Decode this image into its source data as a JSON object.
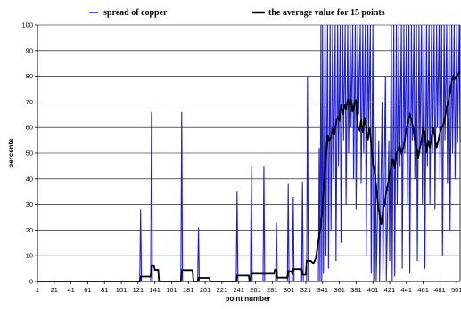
{
  "chart_data": {
    "type": "line",
    "title": "",
    "xlabel": "point number",
    "ylabel": "percents",
    "xlim": [
      1,
      505
    ],
    "ylim": [
      0,
      100
    ],
    "grid": true,
    "legend_position": "top",
    "x_tick_labels": [
      "1",
      "21",
      "41",
      "61",
      "81",
      "101",
      "121",
      "141",
      "161",
      "181",
      "201",
      "221",
      "241",
      "261",
      "281",
      "301",
      "321",
      "341",
      "361",
      "381",
      "401",
      "421",
      "441",
      "461",
      "481",
      "501"
    ],
    "y_tick_labels": [
      "0",
      "10",
      "20",
      "30",
      "40",
      "50",
      "60",
      "70",
      "80",
      "90",
      "100"
    ],
    "series": [
      {
        "name": "spread of copper",
        "color": "#1f1fd0",
        "points": [
          [
            1,
            0
          ],
          [
            123,
            0
          ],
          [
            124,
            28
          ],
          [
            125,
            0
          ],
          [
            136,
            0
          ],
          [
            137,
            66
          ],
          [
            138,
            0
          ],
          [
            172,
            0
          ],
          [
            173,
            66
          ],
          [
            174,
            0
          ],
          [
            192,
            0
          ],
          [
            193,
            21
          ],
          [
            194,
            0
          ],
          [
            238,
            0
          ],
          [
            239,
            35
          ],
          [
            240,
            0
          ],
          [
            255,
            0
          ],
          [
            256,
            45
          ],
          [
            257,
            0
          ],
          [
            270,
            0
          ],
          [
            271,
            45
          ],
          [
            272,
            0
          ],
          [
            285,
            0
          ],
          [
            286,
            23
          ],
          [
            287,
            0
          ],
          [
            299,
            0
          ],
          [
            300,
            38
          ],
          [
            301,
            0
          ],
          [
            305,
            0
          ],
          [
            306,
            33
          ],
          [
            307,
            0
          ],
          [
            316,
            0
          ],
          [
            317,
            39
          ],
          [
            318,
            0
          ],
          [
            322,
            0
          ],
          [
            323,
            80
          ],
          [
            324,
            0
          ],
          [
            336,
            0
          ],
          [
            337,
            52
          ],
          [
            338,
            0
          ],
          [
            339,
            100
          ],
          [
            340,
            0
          ],
          [
            341,
            100
          ],
          [
            342,
            3
          ],
          [
            344,
            100
          ],
          [
            345,
            10
          ],
          [
            347,
            100
          ],
          [
            348,
            5
          ],
          [
            350,
            100
          ],
          [
            351,
            20
          ],
          [
            353,
            100
          ],
          [
            354,
            40
          ],
          [
            356,
            100
          ],
          [
            357,
            8
          ],
          [
            359,
            100
          ],
          [
            360,
            45
          ],
          [
            362,
            100
          ],
          [
            363,
            15
          ],
          [
            365,
            100
          ],
          [
            366,
            55
          ],
          [
            368,
            100
          ],
          [
            369,
            30
          ],
          [
            371,
            100
          ],
          [
            372,
            50
          ],
          [
            374,
            100
          ],
          [
            375,
            60
          ],
          [
            377,
            100
          ],
          [
            378,
            40
          ],
          [
            380,
            100
          ],
          [
            381,
            28
          ],
          [
            383,
            100
          ],
          [
            384,
            65
          ],
          [
            386,
            100
          ],
          [
            387,
            38
          ],
          [
            389,
            100
          ],
          [
            390,
            50
          ],
          [
            392,
            100
          ],
          [
            393,
            10
          ],
          [
            395,
            100
          ],
          [
            396,
            58
          ],
          [
            398,
            100
          ],
          [
            399,
            3
          ],
          [
            401,
            100
          ],
          [
            402,
            0
          ],
          [
            404,
            60
          ],
          [
            405,
            0
          ],
          [
            408,
            55
          ],
          [
            409,
            0
          ],
          [
            412,
            70
          ],
          [
            413,
            2
          ],
          [
            416,
            80
          ],
          [
            417,
            0
          ],
          [
            420,
            55
          ],
          [
            421,
            8
          ],
          [
            423,
            100
          ],
          [
            424,
            0
          ],
          [
            426,
            100
          ],
          [
            427,
            2
          ],
          [
            429,
            100
          ],
          [
            430,
            30
          ],
          [
            432,
            100
          ],
          [
            433,
            45
          ],
          [
            435,
            100
          ],
          [
            436,
            5
          ],
          [
            438,
            100
          ],
          [
            439,
            50
          ],
          [
            441,
            100
          ],
          [
            442,
            30
          ],
          [
            444,
            100
          ],
          [
            445,
            3
          ],
          [
            447,
            100
          ],
          [
            448,
            55
          ],
          [
            450,
            100
          ],
          [
            451,
            40
          ],
          [
            453,
            100
          ],
          [
            454,
            8
          ],
          [
            456,
            100
          ],
          [
            457,
            50
          ],
          [
            459,
            100
          ],
          [
            460,
            30
          ],
          [
            462,
            100
          ],
          [
            463,
            5
          ],
          [
            465,
            100
          ],
          [
            466,
            45
          ],
          [
            468,
            100
          ],
          [
            469,
            30
          ],
          [
            471,
            100
          ],
          [
            472,
            50
          ],
          [
            474,
            100
          ],
          [
            475,
            28
          ],
          [
            477,
            100
          ],
          [
            478,
            60
          ],
          [
            480,
            100
          ],
          [
            481,
            40
          ],
          [
            483,
            100
          ],
          [
            484,
            10
          ],
          [
            486,
            100
          ],
          [
            487,
            55
          ],
          [
            489,
            100
          ],
          [
            490,
            38
          ],
          [
            492,
            100
          ],
          [
            493,
            20
          ],
          [
            495,
            100
          ],
          [
            496,
            50
          ],
          [
            498,
            100
          ],
          [
            499,
            40
          ],
          [
            501,
            100
          ],
          [
            502,
            54
          ],
          [
            504,
            100
          ],
          [
            505,
            54
          ]
        ]
      },
      {
        "name": "the average value for 15 points",
        "color": "#000000",
        "points": [
          [
            1,
            0
          ],
          [
            123,
            0
          ],
          [
            124,
            1.9
          ],
          [
            136,
            1.9
          ],
          [
            137,
            6
          ],
          [
            140,
            6
          ],
          [
            141,
            4.5
          ],
          [
            145,
            4.5
          ],
          [
            146,
            0
          ],
          [
            172,
            0
          ],
          [
            173,
            4.4
          ],
          [
            186,
            4.4
          ],
          [
            187,
            0
          ],
          [
            192,
            0
          ],
          [
            193,
            1.4
          ],
          [
            206,
            1.4
          ],
          [
            207,
            0
          ],
          [
            238,
            0
          ],
          [
            239,
            2.3
          ],
          [
            253,
            2.3
          ],
          [
            254,
            0
          ],
          [
            255,
            0
          ],
          [
            256,
            3
          ],
          [
            270,
            3
          ],
          [
            271,
            3
          ],
          [
            283,
            3
          ],
          [
            284,
            4.5
          ],
          [
            286,
            4.5
          ],
          [
            287,
            1.5
          ],
          [
            299,
            1.5
          ],
          [
            300,
            4
          ],
          [
            304,
            4
          ],
          [
            305,
            2.6
          ],
          [
            306,
            4.8
          ],
          [
            316,
            4.8
          ],
          [
            317,
            2.6
          ],
          [
            321,
            2.6
          ],
          [
            322,
            8
          ],
          [
            327,
            8
          ],
          [
            330,
            7
          ],
          [
            333,
            9
          ],
          [
            336,
            16
          ],
          [
            339,
            22
          ],
          [
            341,
            29
          ],
          [
            343,
            40
          ],
          [
            345,
            48
          ],
          [
            347,
            57
          ],
          [
            349,
            55
          ],
          [
            351,
            56
          ],
          [
            353,
            60
          ],
          [
            355,
            57
          ],
          [
            357,
            62
          ],
          [
            359,
            64
          ],
          [
            361,
            63
          ],
          [
            363,
            69
          ],
          [
            365,
            65
          ],
          [
            367,
            69
          ],
          [
            369,
            67
          ],
          [
            371,
            71
          ],
          [
            373,
            69
          ],
          [
            375,
            71
          ],
          [
            377,
            66
          ],
          [
            379,
            69
          ],
          [
            381,
            71
          ],
          [
            383,
            60
          ],
          [
            385,
            59
          ],
          [
            387,
            63
          ],
          [
            389,
            58
          ],
          [
            391,
            64
          ],
          [
            393,
            60
          ],
          [
            395,
            55
          ],
          [
            397,
            60
          ],
          [
            399,
            54
          ],
          [
            401,
            46
          ],
          [
            403,
            43
          ],
          [
            405,
            37
          ],
          [
            407,
            30
          ],
          [
            409,
            26
          ],
          [
            411,
            22
          ],
          [
            413,
            28
          ],
          [
            415,
            30
          ],
          [
            417,
            35
          ],
          [
            419,
            38
          ],
          [
            421,
            42
          ],
          [
            423,
            45
          ],
          [
            425,
            48
          ],
          [
            427,
            44
          ],
          [
            429,
            50
          ],
          [
            431,
            51
          ],
          [
            433,
            53
          ],
          [
            435,
            50
          ],
          [
            437,
            52
          ],
          [
            439,
            55
          ],
          [
            441,
            60
          ],
          [
            443,
            62
          ],
          [
            445,
            65
          ],
          [
            447,
            63
          ],
          [
            449,
            60
          ],
          [
            451,
            55
          ],
          [
            453,
            52
          ],
          [
            455,
            48
          ],
          [
            457,
            52
          ],
          [
            459,
            55
          ],
          [
            461,
            60
          ],
          [
            463,
            58
          ],
          [
            465,
            50
          ],
          [
            467,
            55
          ],
          [
            469,
            52
          ],
          [
            471,
            56
          ],
          [
            473,
            60
          ],
          [
            475,
            56
          ],
          [
            477,
            52
          ],
          [
            479,
            55
          ],
          [
            481,
            58
          ],
          [
            483,
            60
          ],
          [
            485,
            61
          ],
          [
            487,
            64
          ],
          [
            489,
            68
          ],
          [
            491,
            70
          ],
          [
            493,
            74
          ],
          [
            495,
            78
          ],
          [
            497,
            80
          ],
          [
            499,
            79
          ],
          [
            501,
            80
          ],
          [
            503,
            81
          ],
          [
            505,
            82
          ]
        ]
      }
    ]
  }
}
